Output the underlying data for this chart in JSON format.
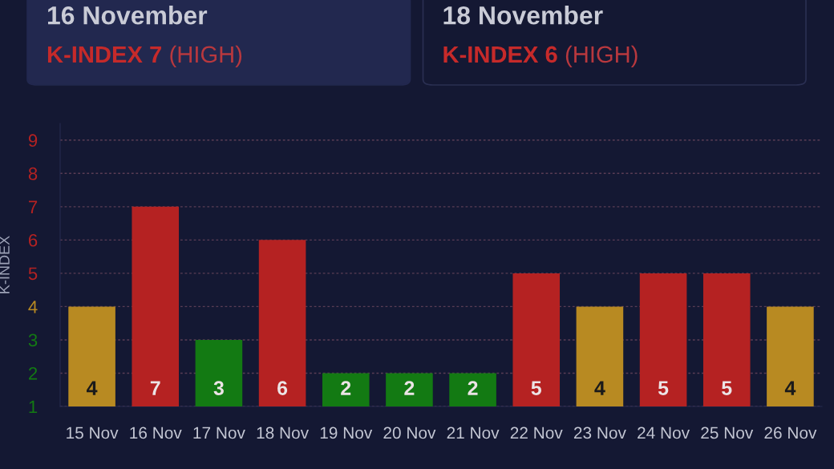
{
  "chart_data": {
    "type": "bar",
    "ylabel": "K-INDEX",
    "annotations": [
      "16 November",
      "K-INDEX 7",
      "(HIGH)",
      "18 November",
      "K-INDEX 6",
      "(HIGH)"
    ],
    "categories": [
      "15 Nov",
      "16 Nov",
      "17 Nov",
      "18 Nov",
      "19 Nov",
      "20 Nov",
      "21 Nov",
      "22 Nov",
      "23 Nov",
      "24 Nov",
      "25 Nov",
      "26 Nov"
    ],
    "values": [
      4,
      7,
      3,
      6,
      2,
      2,
      2,
      5,
      4,
      5,
      5,
      4
    ],
    "colors": [
      "#b88a22",
      "#b52222",
      "#137a13",
      "#b52222",
      "#137a13",
      "#137a13",
      "#137a13",
      "#b52222",
      "#b88a22",
      "#b52222",
      "#b52222",
      "#b88a22"
    ],
    "ylim": [
      1,
      9.5
    ],
    "yticks": [
      1,
      2,
      3,
      4,
      5,
      6,
      7,
      8,
      9
    ],
    "grid": "y",
    "data_labels": true
  }
}
